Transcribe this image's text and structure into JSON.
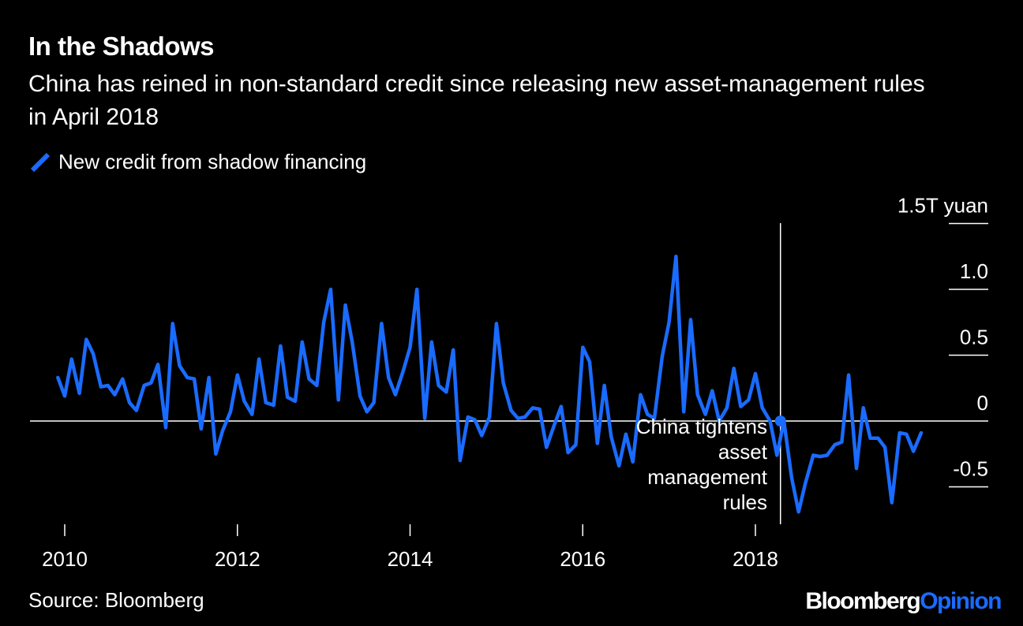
{
  "title": "In the Shadows",
  "subtitle": "China has reined in non-standard credit since releasing new asset-management rules in April 2018",
  "legend": [
    {
      "label": "New credit from shadow financing",
      "color": "#1a6bff"
    }
  ],
  "source": "Source: Bloomberg",
  "brand": {
    "main": "Bloomberg",
    "accent": "Opinion"
  },
  "colors": {
    "background": "#000000",
    "line": "#1a6bff",
    "text": "#ffffff"
  },
  "chart_data": {
    "type": "line",
    "title": "In the Shadows",
    "ylabel": "",
    "xlim": [
      2009.75,
      2019.95
    ],
    "ylim": [
      -0.8,
      1.5
    ],
    "y_unit_label": "1.5T yuan",
    "y_ticks": [
      {
        "value": 1.5,
        "label": "1.5T yuan"
      },
      {
        "value": 1.0,
        "label": "1.0"
      },
      {
        "value": 0.5,
        "label": "0.5"
      },
      {
        "value": 0,
        "label": "0"
      },
      {
        "value": -0.5,
        "label": "-0.5"
      }
    ],
    "x_ticks": [
      {
        "value": 2010,
        "label": "2010"
      },
      {
        "value": 2012,
        "label": "2012"
      },
      {
        "value": 2014,
        "label": "2014"
      },
      {
        "value": 2016,
        "label": "2016"
      },
      {
        "value": 2018,
        "label": "2018"
      }
    ],
    "annotation": {
      "x": 2018.29,
      "y": 0,
      "lines": [
        "China tightens",
        "asset",
        "management",
        "rules"
      ]
    },
    "series": [
      {
        "name": "New credit from shadow financing",
        "x": [
          2009.92,
          2010.0,
          2010.08,
          2010.17,
          2010.25,
          2010.33,
          2010.42,
          2010.5,
          2010.58,
          2010.67,
          2010.75,
          2010.83,
          2010.92,
          2011.0,
          2011.08,
          2011.17,
          2011.25,
          2011.33,
          2011.42,
          2011.5,
          2011.58,
          2011.67,
          2011.75,
          2011.83,
          2011.92,
          2012.0,
          2012.08,
          2012.17,
          2012.25,
          2012.33,
          2012.42,
          2012.5,
          2012.58,
          2012.67,
          2012.75,
          2012.83,
          2012.92,
          2013.0,
          2013.08,
          2013.17,
          2013.25,
          2013.33,
          2013.42,
          2013.5,
          2013.58,
          2013.67,
          2013.75,
          2013.83,
          2013.92,
          2014.0,
          2014.08,
          2014.17,
          2014.25,
          2014.33,
          2014.42,
          2014.5,
          2014.58,
          2014.67,
          2014.75,
          2014.83,
          2014.92,
          2015.0,
          2015.08,
          2015.17,
          2015.25,
          2015.33,
          2015.42,
          2015.5,
          2015.58,
          2015.67,
          2015.75,
          2015.83,
          2015.92,
          2016.0,
          2016.08,
          2016.17,
          2016.25,
          2016.33,
          2016.42,
          2016.5,
          2016.58,
          2016.67,
          2016.75,
          2016.83,
          2016.92,
          2017.0,
          2017.08,
          2017.17,
          2017.25,
          2017.33,
          2017.42,
          2017.5,
          2017.58,
          2017.67,
          2017.75,
          2017.83,
          2017.92,
          2018.0,
          2018.08,
          2018.17,
          2018.25,
          2018.33,
          2018.42,
          2018.5,
          2018.58,
          2018.67,
          2018.75,
          2018.83,
          2018.92,
          2019.0,
          2019.08,
          2019.17,
          2019.25,
          2019.33,
          2019.42,
          2019.5,
          2019.58,
          2019.67,
          2019.75,
          2019.83,
          2019.92
        ],
        "y": [
          0.33,
          0.19,
          0.47,
          0.21,
          0.62,
          0.51,
          0.26,
          0.27,
          0.2,
          0.32,
          0.14,
          0.08,
          0.27,
          0.29,
          0.43,
          -0.05,
          0.74,
          0.42,
          0.33,
          0.32,
          -0.06,
          0.33,
          -0.25,
          -0.07,
          0.07,
          0.35,
          0.15,
          0.05,
          0.47,
          0.14,
          0.12,
          0.57,
          0.18,
          0.15,
          0.6,
          0.32,
          0.27,
          0.75,
          1.0,
          0.16,
          0.88,
          0.6,
          0.19,
          0.07,
          0.14,
          0.74,
          0.33,
          0.2,
          0.38,
          0.56,
          1.0,
          0.02,
          0.6,
          0.27,
          0.22,
          0.54,
          -0.3,
          0.03,
          0.01,
          -0.11,
          0.03,
          0.74,
          0.29,
          0.08,
          0.02,
          0.03,
          0.1,
          0.09,
          -0.2,
          -0.03,
          0.11,
          -0.24,
          -0.18,
          0.56,
          0.45,
          -0.17,
          0.27,
          -0.12,
          -0.34,
          -0.1,
          -0.31,
          0.2,
          0.05,
          0.02,
          0.49,
          0.75,
          1.25,
          0.07,
          0.77,
          0.2,
          0.05,
          0.23,
          0.0,
          0.1,
          0.4,
          0.11,
          0.16,
          0.36,
          0.1,
          0.0,
          -0.26,
          0.0,
          -0.43,
          -0.69,
          -0.47,
          -0.26,
          -0.27,
          -0.26,
          -0.18,
          -0.16,
          0.35,
          -0.36,
          0.1,
          -0.13,
          -0.13,
          -0.2,
          -0.62,
          -0.09,
          -0.1,
          -0.23,
          -0.09
        ]
      }
    ]
  }
}
